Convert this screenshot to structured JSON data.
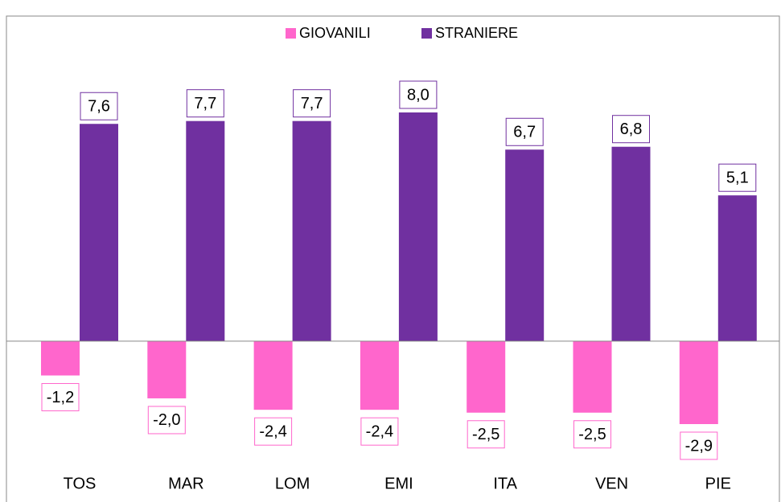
{
  "chart_data": {
    "type": "bar",
    "categories": [
      "TOS",
      "MAR",
      "LOM",
      "EMI",
      "ITA",
      "VEN",
      "PIE"
    ],
    "series": [
      {
        "name": "GIOVANILI",
        "color": "#ff66cc",
        "values": [
          -1.2,
          -2.0,
          -2.4,
          -2.4,
          -2.5,
          -2.5,
          -2.9
        ],
        "value_labels": [
          "-1,2",
          "-2,0",
          "-2,4",
          "-2,4",
          "-2,5",
          "-2,5",
          "-2,9"
        ]
      },
      {
        "name": "STRANIERE",
        "color": "#7030a0",
        "values": [
          7.6,
          7.7,
          7.7,
          8.0,
          6.7,
          6.8,
          5.1
        ],
        "value_labels": [
          "7,6",
          "7,7",
          "7,7",
          "8,0",
          "6,7",
          "6,8",
          "5,1"
        ]
      }
    ],
    "legend": "top"
  }
}
